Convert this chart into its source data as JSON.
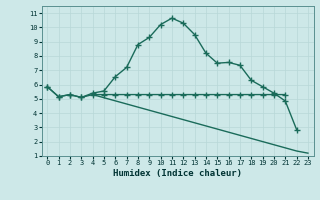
{
  "xlabel": "Humidex (Indice chaleur)",
  "xlim": [
    -0.5,
    23.5
  ],
  "ylim": [
    1,
    11.5
  ],
  "xticks": [
    0,
    1,
    2,
    3,
    4,
    5,
    6,
    7,
    8,
    9,
    10,
    11,
    12,
    13,
    14,
    15,
    16,
    17,
    18,
    19,
    20,
    21,
    22,
    23
  ],
  "yticks": [
    1,
    2,
    3,
    4,
    5,
    6,
    7,
    8,
    9,
    10,
    11
  ],
  "bg_color": "#cde8e8",
  "line_color": "#1a6b5a",
  "grid_color": "#b8d8d8",
  "curve1_x": [
    0,
    1,
    2,
    3,
    4,
    5,
    6,
    7,
    8,
    9,
    10,
    11,
    12,
    13,
    14,
    15,
    16,
    17,
    18,
    19,
    20,
    21,
    22
  ],
  "curve1_y": [
    5.85,
    5.15,
    5.3,
    5.1,
    5.4,
    5.55,
    6.55,
    7.2,
    8.8,
    9.3,
    10.2,
    10.65,
    10.3,
    9.5,
    8.2,
    7.5,
    7.55,
    7.35,
    6.3,
    5.85,
    5.4,
    4.85,
    2.85
  ],
  "curve2_x": [
    0,
    1,
    2,
    3,
    4,
    5,
    6,
    7,
    8,
    9,
    10,
    11,
    12,
    13,
    14,
    15,
    16,
    17,
    18,
    19,
    20,
    21
  ],
  "curve2_y": [
    5.85,
    5.15,
    5.3,
    5.1,
    5.3,
    5.3,
    5.3,
    5.3,
    5.3,
    5.3,
    5.3,
    5.3,
    5.3,
    5.3,
    5.3,
    5.3,
    5.3,
    5.3,
    5.3,
    5.3,
    5.3,
    5.3
  ],
  "curve3_x": [
    4,
    22,
    23
  ],
  "curve3_y": [
    5.3,
    1.35,
    1.2
  ]
}
